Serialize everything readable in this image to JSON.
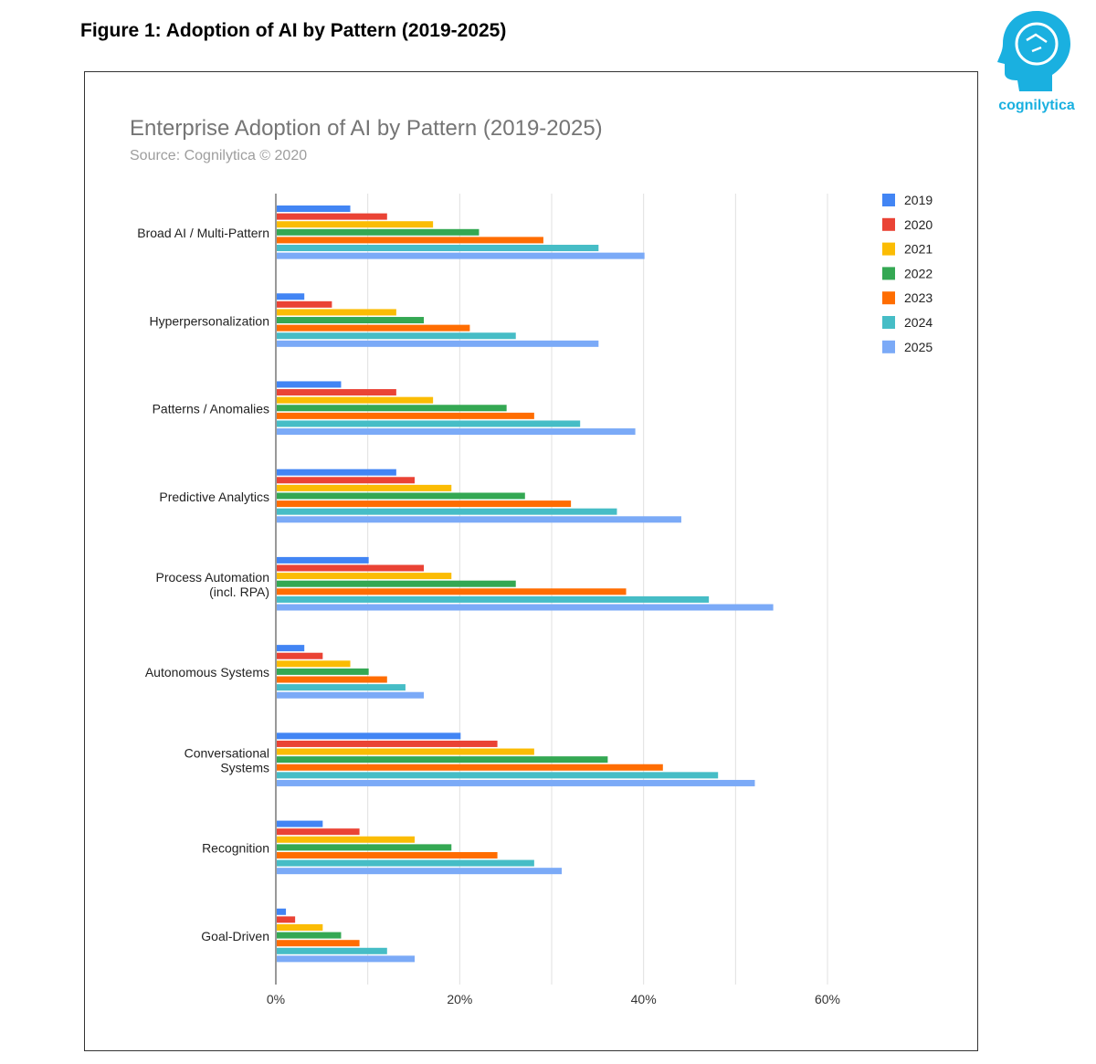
{
  "figure_title": "Figure 1: Adoption of AI by Pattern (2019-2025)",
  "logo": {
    "text": "cognilytica",
    "color": "#1ab0e0"
  },
  "chart_data": {
    "type": "bar",
    "orientation": "horizontal",
    "title": "Enterprise Adoption of AI by Pattern (2019-2025)",
    "subtitle": "Source: Cognilytica © 2020",
    "xlabel": "",
    "ylabel": "",
    "xlim": [
      0,
      60
    ],
    "x_ticks": [
      0,
      20,
      40,
      60
    ],
    "x_tick_labels": [
      "0%",
      "20%",
      "40%",
      "60%"
    ],
    "grid": true,
    "legend_position": "top-right",
    "categories": [
      [
        "Broad AI / Multi-Pattern"
      ],
      [
        "Hyperpersonalization"
      ],
      [
        "Patterns / Anomalies"
      ],
      [
        "Predictive Analytics"
      ],
      [
        "Process Automation",
        "(incl. RPA)"
      ],
      [
        "Autonomous Systems"
      ],
      [
        "Conversational",
        "Systems"
      ],
      [
        "Recognition"
      ],
      [
        "Goal-Driven"
      ]
    ],
    "series": [
      {
        "name": "2019",
        "color": "#4285f4",
        "values": [
          8,
          3,
          7,
          13,
          10,
          3,
          20,
          5,
          1
        ]
      },
      {
        "name": "2020",
        "color": "#ea4335",
        "values": [
          12,
          6,
          13,
          15,
          16,
          5,
          24,
          9,
          2
        ]
      },
      {
        "name": "2021",
        "color": "#fbbc04",
        "values": [
          17,
          13,
          17,
          19,
          19,
          8,
          28,
          15,
          5
        ]
      },
      {
        "name": "2022",
        "color": "#34a853",
        "values": [
          22,
          16,
          25,
          27,
          26,
          10,
          36,
          19,
          7
        ]
      },
      {
        "name": "2023",
        "color": "#ff6d01",
        "values": [
          29,
          21,
          28,
          32,
          38,
          12,
          42,
          24,
          9
        ]
      },
      {
        "name": "2024",
        "color": "#46bdc6",
        "values": [
          35,
          26,
          33,
          37,
          47,
          14,
          48,
          28,
          12
        ]
      },
      {
        "name": "2025",
        "color": "#7baaf7",
        "values": [
          40,
          35,
          39,
          44,
          54,
          16,
          52,
          31,
          15
        ]
      }
    ]
  }
}
